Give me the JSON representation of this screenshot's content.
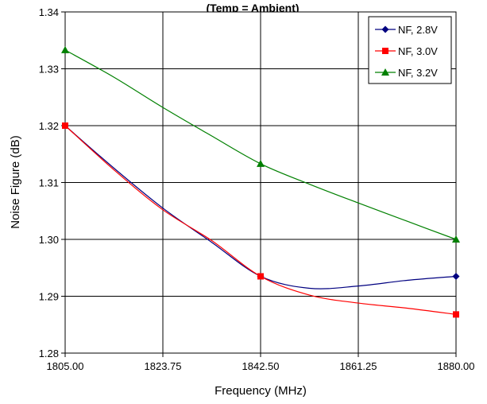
{
  "chart_data": {
    "type": "line",
    "title": "(Temp = Ambient)",
    "xlabel": "Frequency (MHz)",
    "ylabel": "Noise Figure (dB)",
    "xlim": [
      1805.0,
      1880.0
    ],
    "ylim": [
      1.28,
      1.34
    ],
    "x_ticks": [
      "1805.00",
      "1823.75",
      "1842.50",
      "1861.25",
      "1880.00"
    ],
    "y_ticks": [
      "1.28",
      "1.29",
      "1.30",
      "1.31",
      "1.32",
      "1.33",
      "1.34"
    ],
    "grid": true,
    "legend_position": "top-right",
    "series": [
      {
        "name": "NF, 2.8V",
        "color": "#000080",
        "marker": "diamond",
        "markers_x": [
          1805.0,
          1842.5,
          1880.0
        ],
        "markers_y": [
          1.32,
          1.2935,
          1.2935
        ],
        "x": [
          1805.0,
          1814.4,
          1823.75,
          1833.1,
          1842.5,
          1851.9,
          1861.25,
          1870.6,
          1880.0
        ],
        "y": [
          1.32,
          1.3125,
          1.3055,
          1.2995,
          1.2935,
          1.2914,
          1.2918,
          1.2928,
          1.2935
        ]
      },
      {
        "name": "NF, 3.0V",
        "color": "#ff0000",
        "marker": "square",
        "markers_x": [
          1805.0,
          1842.5,
          1880.0
        ],
        "markers_y": [
          1.32,
          1.2935,
          1.2868
        ],
        "x": [
          1805.0,
          1814.4,
          1823.75,
          1833.1,
          1842.5,
          1851.9,
          1861.25,
          1870.6,
          1880.0
        ],
        "y": [
          1.32,
          1.3122,
          1.3052,
          1.2998,
          1.2935,
          1.2902,
          1.2888,
          1.2879,
          1.2868
        ]
      },
      {
        "name": "NF, 3.2V",
        "color": "#008000",
        "marker": "triangle",
        "markers_x": [
          1805.0,
          1842.5,
          1880.0
        ],
        "markers_y": [
          1.3333,
          1.3133,
          1.3
        ],
        "x": [
          1805.0,
          1814.4,
          1823.75,
          1833.1,
          1842.5,
          1851.9,
          1861.25,
          1870.6,
          1880.0
        ],
        "y": [
          1.3333,
          1.3285,
          1.3232,
          1.3182,
          1.3133,
          1.3097,
          1.3064,
          1.3032,
          1.3
        ]
      }
    ]
  }
}
